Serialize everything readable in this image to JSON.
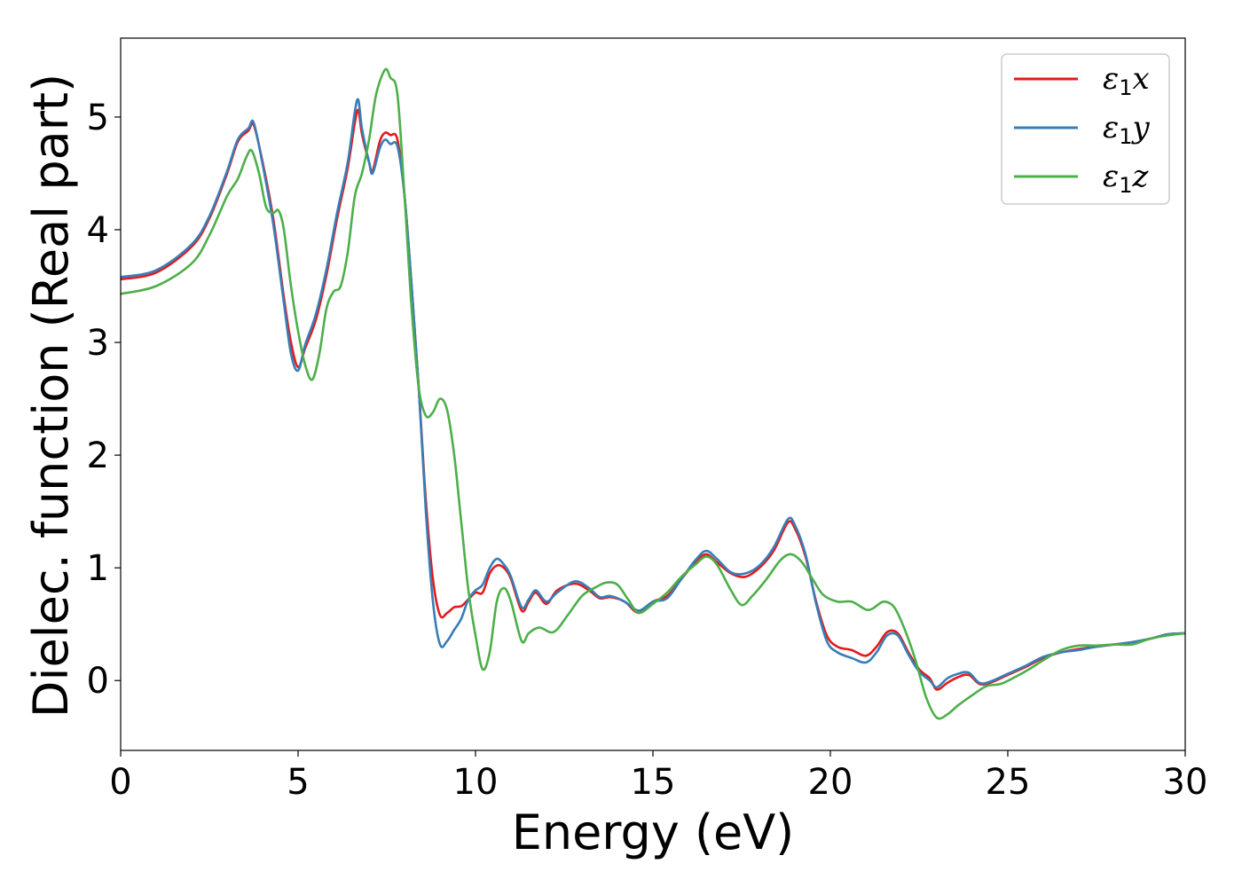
{
  "chart_data": {
    "type": "line",
    "title": "",
    "xlabel": "Energy (eV)",
    "ylabel": "Dielec. function (Real part)",
    "xlim": [
      0,
      30
    ],
    "ylim": [
      -0.62,
      5.7
    ],
    "xticks": [
      0,
      5,
      10,
      15,
      20,
      25,
      30
    ],
    "yticks": [
      0,
      1,
      2,
      3,
      4,
      5
    ],
    "grid": false,
    "legend_position": "top-right",
    "series": [
      {
        "name": "ε1x",
        "legend": {
          "base": "ε",
          "sub": "1",
          "var": "x"
        },
        "color": "#e41a1c",
        "points": [
          [
            0,
            3.56
          ],
          [
            1,
            3.62
          ],
          [
            2,
            3.85
          ],
          [
            2.5,
            4.1
          ],
          [
            3,
            4.5
          ],
          [
            3.3,
            4.78
          ],
          [
            3.6,
            4.88
          ],
          [
            3.75,
            4.93
          ],
          [
            4,
            4.6
          ],
          [
            4.3,
            4.1
          ],
          [
            4.6,
            3.4
          ],
          [
            4.8,
            3.0
          ],
          [
            5.0,
            2.78
          ],
          [
            5.2,
            2.95
          ],
          [
            5.5,
            3.2
          ],
          [
            5.8,
            3.6
          ],
          [
            6.1,
            4.1
          ],
          [
            6.4,
            4.55
          ],
          [
            6.6,
            4.95
          ],
          [
            6.7,
            5.06
          ],
          [
            6.8,
            4.85
          ],
          [
            7.0,
            4.6
          ],
          [
            7.1,
            4.52
          ],
          [
            7.3,
            4.78
          ],
          [
            7.45,
            4.86
          ],
          [
            7.6,
            4.84
          ],
          [
            7.8,
            4.8
          ],
          [
            8.0,
            4.3
          ],
          [
            8.2,
            3.5
          ],
          [
            8.4,
            2.6
          ],
          [
            8.6,
            1.6
          ],
          [
            8.8,
            0.9
          ],
          [
            9.0,
            0.58
          ],
          [
            9.2,
            0.6
          ],
          [
            9.4,
            0.65
          ],
          [
            9.6,
            0.66
          ],
          [
            9.8,
            0.72
          ],
          [
            10.0,
            0.78
          ],
          [
            10.2,
            0.78
          ],
          [
            10.4,
            0.95
          ],
          [
            10.6,
            1.02
          ],
          [
            10.8,
            1.0
          ],
          [
            11.0,
            0.9
          ],
          [
            11.3,
            0.62
          ],
          [
            11.5,
            0.7
          ],
          [
            11.7,
            0.78
          ],
          [
            12.0,
            0.68
          ],
          [
            12.3,
            0.8
          ],
          [
            12.8,
            0.86
          ],
          [
            13.2,
            0.8
          ],
          [
            13.5,
            0.73
          ],
          [
            13.8,
            0.74
          ],
          [
            14.2,
            0.7
          ],
          [
            14.6,
            0.6
          ],
          [
            15.0,
            0.7
          ],
          [
            15.4,
            0.75
          ],
          [
            15.8,
            0.9
          ],
          [
            16.2,
            1.05
          ],
          [
            16.5,
            1.12
          ],
          [
            16.8,
            1.05
          ],
          [
            17.2,
            0.95
          ],
          [
            17.6,
            0.92
          ],
          [
            18.0,
            1.0
          ],
          [
            18.4,
            1.15
          ],
          [
            18.8,
            1.4
          ],
          [
            19.0,
            1.35
          ],
          [
            19.3,
            1.1
          ],
          [
            19.6,
            0.7
          ],
          [
            19.9,
            0.4
          ],
          [
            20.2,
            0.3
          ],
          [
            20.6,
            0.27
          ],
          [
            21.0,
            0.22
          ],
          [
            21.3,
            0.3
          ],
          [
            21.6,
            0.43
          ],
          [
            21.9,
            0.42
          ],
          [
            22.2,
            0.25
          ],
          [
            22.5,
            0.1
          ],
          [
            22.8,
            0.02
          ],
          [
            23.0,
            -0.08
          ],
          [
            23.3,
            -0.02
          ],
          [
            23.6,
            0.03
          ],
          [
            23.9,
            0.05
          ],
          [
            24.2,
            -0.03
          ],
          [
            24.5,
            -0.02
          ],
          [
            25.0,
            0.05
          ],
          [
            25.5,
            0.12
          ],
          [
            26.0,
            0.2
          ],
          [
            26.5,
            0.25
          ],
          [
            27.0,
            0.28
          ],
          [
            27.5,
            0.3
          ],
          [
            28.0,
            0.32
          ],
          [
            28.5,
            0.34
          ],
          [
            29.0,
            0.37
          ],
          [
            29.5,
            0.41
          ],
          [
            30,
            0.42
          ]
        ]
      },
      {
        "name": "ε1y",
        "legend": {
          "base": "ε",
          "sub": "1",
          "var": "y"
        },
        "color": "#377eb8",
        "points": [
          [
            0,
            3.58
          ],
          [
            1,
            3.64
          ],
          [
            2,
            3.87
          ],
          [
            2.5,
            4.12
          ],
          [
            3,
            4.52
          ],
          [
            3.3,
            4.8
          ],
          [
            3.6,
            4.9
          ],
          [
            3.75,
            4.95
          ],
          [
            4,
            4.58
          ],
          [
            4.3,
            4.05
          ],
          [
            4.6,
            3.35
          ],
          [
            4.8,
            2.9
          ],
          [
            5.0,
            2.75
          ],
          [
            5.2,
            2.98
          ],
          [
            5.5,
            3.25
          ],
          [
            5.8,
            3.65
          ],
          [
            6.1,
            4.15
          ],
          [
            6.4,
            4.6
          ],
          [
            6.6,
            5.05
          ],
          [
            6.7,
            5.15
          ],
          [
            6.8,
            4.9
          ],
          [
            7.0,
            4.6
          ],
          [
            7.1,
            4.5
          ],
          [
            7.3,
            4.72
          ],
          [
            7.45,
            4.8
          ],
          [
            7.6,
            4.76
          ],
          [
            7.8,
            4.74
          ],
          [
            8.0,
            4.3
          ],
          [
            8.2,
            3.5
          ],
          [
            8.4,
            2.6
          ],
          [
            8.6,
            1.5
          ],
          [
            8.8,
            0.7
          ],
          [
            9.0,
            0.32
          ],
          [
            9.2,
            0.35
          ],
          [
            9.4,
            0.45
          ],
          [
            9.6,
            0.55
          ],
          [
            9.8,
            0.72
          ],
          [
            10.0,
            0.8
          ],
          [
            10.2,
            0.85
          ],
          [
            10.4,
            1.0
          ],
          [
            10.6,
            1.08
          ],
          [
            10.8,
            1.03
          ],
          [
            11.0,
            0.92
          ],
          [
            11.3,
            0.65
          ],
          [
            11.5,
            0.72
          ],
          [
            11.7,
            0.8
          ],
          [
            12.0,
            0.7
          ],
          [
            12.3,
            0.78
          ],
          [
            12.8,
            0.88
          ],
          [
            13.2,
            0.82
          ],
          [
            13.5,
            0.74
          ],
          [
            13.8,
            0.75
          ],
          [
            14.2,
            0.7
          ],
          [
            14.6,
            0.62
          ],
          [
            15.0,
            0.7
          ],
          [
            15.4,
            0.73
          ],
          [
            15.8,
            0.9
          ],
          [
            16.2,
            1.07
          ],
          [
            16.5,
            1.15
          ],
          [
            16.8,
            1.08
          ],
          [
            17.2,
            0.96
          ],
          [
            17.6,
            0.95
          ],
          [
            18.0,
            1.02
          ],
          [
            18.4,
            1.18
          ],
          [
            18.8,
            1.43
          ],
          [
            19.0,
            1.38
          ],
          [
            19.3,
            1.12
          ],
          [
            19.6,
            0.68
          ],
          [
            19.9,
            0.35
          ],
          [
            20.2,
            0.25
          ],
          [
            20.6,
            0.2
          ],
          [
            21.0,
            0.16
          ],
          [
            21.3,
            0.25
          ],
          [
            21.6,
            0.4
          ],
          [
            21.9,
            0.4
          ],
          [
            22.2,
            0.23
          ],
          [
            22.5,
            0.08
          ],
          [
            22.8,
            0.0
          ],
          [
            23.0,
            -0.06
          ],
          [
            23.3,
            0.02
          ],
          [
            23.6,
            0.06
          ],
          [
            23.9,
            0.07
          ],
          [
            24.2,
            -0.02
          ],
          [
            24.5,
            -0.01
          ],
          [
            25.0,
            0.06
          ],
          [
            25.5,
            0.13
          ],
          [
            26.0,
            0.21
          ],
          [
            26.5,
            0.25
          ],
          [
            27.0,
            0.27
          ],
          [
            27.5,
            0.3
          ],
          [
            28.0,
            0.32
          ],
          [
            28.5,
            0.34
          ],
          [
            29.0,
            0.37
          ],
          [
            29.5,
            0.41
          ],
          [
            30,
            0.42
          ]
        ]
      },
      {
        "name": "ε1z",
        "legend": {
          "base": "ε",
          "sub": "1",
          "var": "z"
        },
        "color": "#4daf4a",
        "points": [
          [
            0,
            3.43
          ],
          [
            1,
            3.5
          ],
          [
            2,
            3.7
          ],
          [
            2.5,
            3.95
          ],
          [
            3,
            4.3
          ],
          [
            3.3,
            4.45
          ],
          [
            3.55,
            4.65
          ],
          [
            3.7,
            4.7
          ],
          [
            3.9,
            4.5
          ],
          [
            4.1,
            4.2
          ],
          [
            4.3,
            4.15
          ],
          [
            4.45,
            4.17
          ],
          [
            4.6,
            4.0
          ],
          [
            4.8,
            3.5
          ],
          [
            5.0,
            3.1
          ],
          [
            5.2,
            2.8
          ],
          [
            5.4,
            2.67
          ],
          [
            5.6,
            2.9
          ],
          [
            5.8,
            3.3
          ],
          [
            6.0,
            3.45
          ],
          [
            6.2,
            3.5
          ],
          [
            6.4,
            3.8
          ],
          [
            6.6,
            4.3
          ],
          [
            6.8,
            4.5
          ],
          [
            7.0,
            4.8
          ],
          [
            7.2,
            5.2
          ],
          [
            7.45,
            5.42
          ],
          [
            7.6,
            5.35
          ],
          [
            7.8,
            5.2
          ],
          [
            8.0,
            4.3
          ],
          [
            8.2,
            3.3
          ],
          [
            8.4,
            2.6
          ],
          [
            8.6,
            2.35
          ],
          [
            8.8,
            2.38
          ],
          [
            9.0,
            2.5
          ],
          [
            9.2,
            2.4
          ],
          [
            9.4,
            2.0
          ],
          [
            9.6,
            1.4
          ],
          [
            9.8,
            0.8
          ],
          [
            10.0,
            0.4
          ],
          [
            10.2,
            0.1
          ],
          [
            10.4,
            0.25
          ],
          [
            10.6,
            0.7
          ],
          [
            10.8,
            0.82
          ],
          [
            11.0,
            0.7
          ],
          [
            11.3,
            0.35
          ],
          [
            11.5,
            0.42
          ],
          [
            11.8,
            0.47
          ],
          [
            12.2,
            0.43
          ],
          [
            12.6,
            0.58
          ],
          [
            13.0,
            0.75
          ],
          [
            13.4,
            0.83
          ],
          [
            13.7,
            0.87
          ],
          [
            14.0,
            0.85
          ],
          [
            14.3,
            0.72
          ],
          [
            14.6,
            0.6
          ],
          [
            15.0,
            0.68
          ],
          [
            15.4,
            0.78
          ],
          [
            15.8,
            0.92
          ],
          [
            16.2,
            1.03
          ],
          [
            16.5,
            1.1
          ],
          [
            16.8,
            1.03
          ],
          [
            17.2,
            0.8
          ],
          [
            17.5,
            0.67
          ],
          [
            17.8,
            0.75
          ],
          [
            18.2,
            0.9
          ],
          [
            18.6,
            1.07
          ],
          [
            18.9,
            1.12
          ],
          [
            19.2,
            1.05
          ],
          [
            19.5,
            0.9
          ],
          [
            19.8,
            0.76
          ],
          [
            20.2,
            0.7
          ],
          [
            20.6,
            0.7
          ],
          [
            21.0,
            0.63
          ],
          [
            21.2,
            0.64
          ],
          [
            21.5,
            0.7
          ],
          [
            21.8,
            0.65
          ],
          [
            22.1,
            0.45
          ],
          [
            22.4,
            0.18
          ],
          [
            22.7,
            -0.15
          ],
          [
            23.0,
            -0.33
          ],
          [
            23.3,
            -0.3
          ],
          [
            23.6,
            -0.22
          ],
          [
            24.0,
            -0.13
          ],
          [
            24.4,
            -0.05
          ],
          [
            24.8,
            -0.03
          ],
          [
            25.2,
            0.03
          ],
          [
            25.6,
            0.1
          ],
          [
            26.0,
            0.18
          ],
          [
            26.5,
            0.27
          ],
          [
            27.0,
            0.31
          ],
          [
            27.5,
            0.31
          ],
          [
            28.0,
            0.32
          ],
          [
            28.5,
            0.32
          ],
          [
            29.0,
            0.37
          ],
          [
            29.5,
            0.4
          ],
          [
            30,
            0.42
          ]
        ]
      }
    ]
  }
}
